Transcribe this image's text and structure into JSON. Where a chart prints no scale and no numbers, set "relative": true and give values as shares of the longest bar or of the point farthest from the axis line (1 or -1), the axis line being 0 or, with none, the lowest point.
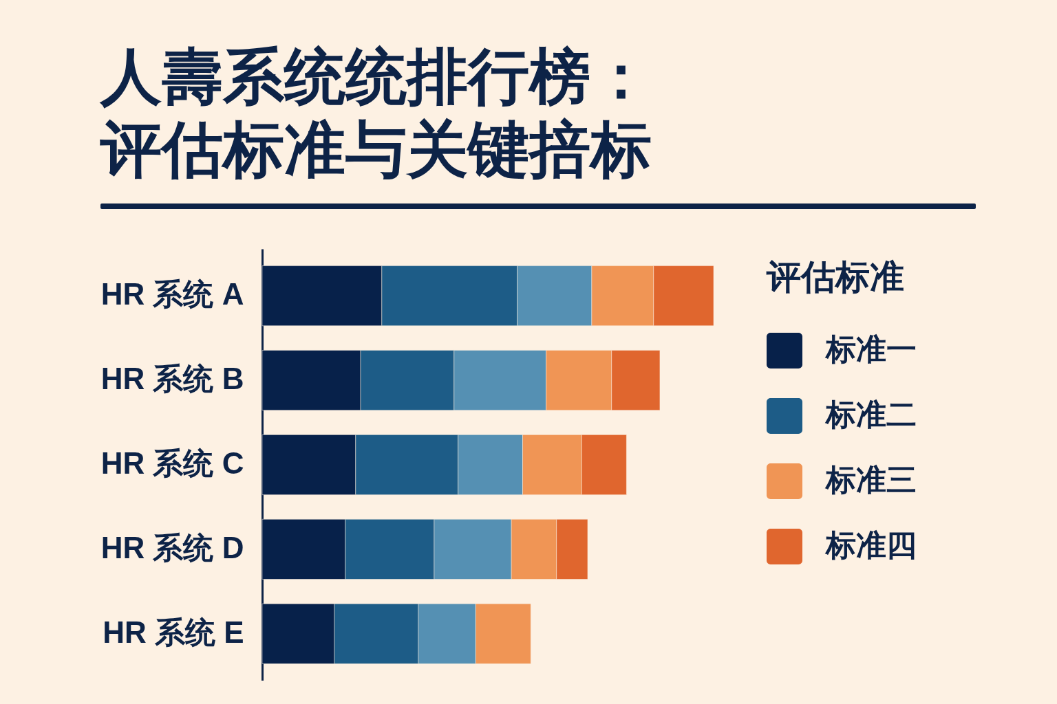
{
  "chart_data": {
    "type": "bar",
    "title": "人壽系统统排行榜：评估标准与关键掊标",
    "orientation": "horizontal",
    "stacked": true,
    "relative": true,
    "categories": [
      "HR 系统 A",
      "HR 系统 B",
      "HR 系统 C",
      "HR 系统 D",
      "HR 系统 E"
    ],
    "legend_title": "评估标准",
    "legend": "right",
    "series": [
      {
        "name": "标准一",
        "color": "#07214a",
        "values": [
          0.265,
          0.218,
          0.207,
          0.184,
          0.16
        ]
      },
      {
        "name": "标准二",
        "color": "#1d5c87",
        "values": [
          0.3,
          0.207,
          0.227,
          0.197,
          0.186
        ]
      },
      {
        "color": "#5590b3",
        "values": [
          0.165,
          0.204,
          0.143,
          0.171,
          0.127
        ]
      },
      {
        "name": "标准三",
        "color": "#f09555",
        "values": [
          0.137,
          0.145,
          0.131,
          0.1,
          0.122
        ]
      },
      {
        "name": "标准四",
        "color": "#e0662e",
        "values": [
          0.133,
          0.107,
          0.099,
          0.069,
          null
        ]
      }
    ]
  }
}
